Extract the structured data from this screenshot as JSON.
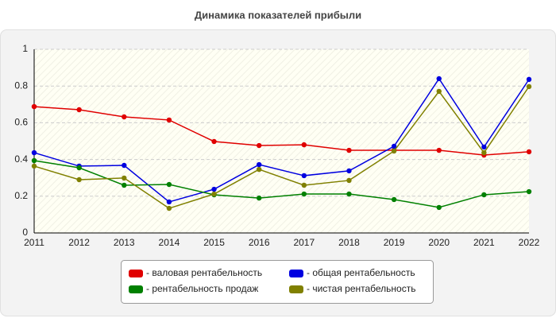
{
  "chart_data": {
    "type": "line",
    "title": "Динамика показателей прибыли",
    "categories": [
      "2011",
      "2012",
      "2013",
      "2014",
      "2015",
      "2016",
      "2017",
      "2018",
      "2019",
      "2020",
      "2021",
      "2022"
    ],
    "series": [
      {
        "name": "- валовая рентабельность",
        "color": "#e00000",
        "values": [
          0.688,
          0.671,
          0.632,
          0.615,
          0.498,
          0.476,
          0.48,
          0.45,
          0.45,
          0.45,
          0.424,
          0.442
        ]
      },
      {
        "name": "- общая рентабельность",
        "color": "#0000e0",
        "values": [
          0.437,
          0.364,
          0.368,
          0.169,
          0.238,
          0.372,
          0.312,
          0.338,
          0.472,
          0.84,
          0.468,
          0.836
        ]
      },
      {
        "name": "- рентабельность продаж",
        "color": "#008000",
        "values": [
          0.394,
          0.355,
          0.26,
          0.264,
          0.208,
          0.19,
          0.212,
          0.212,
          0.182,
          0.139,
          0.208,
          0.225
        ]
      },
      {
        "name": "- чистая рентабельность",
        "color": "#808000",
        "values": [
          0.364,
          0.29,
          0.299,
          0.134,
          0.212,
          0.346,
          0.26,
          0.286,
          0.446,
          0.771,
          0.437,
          0.797
        ]
      }
    ],
    "ylim": [
      0,
      1
    ],
    "yticks": [
      0,
      0.2,
      0.4,
      0.6,
      0.8,
      1
    ],
    "grid": true
  }
}
